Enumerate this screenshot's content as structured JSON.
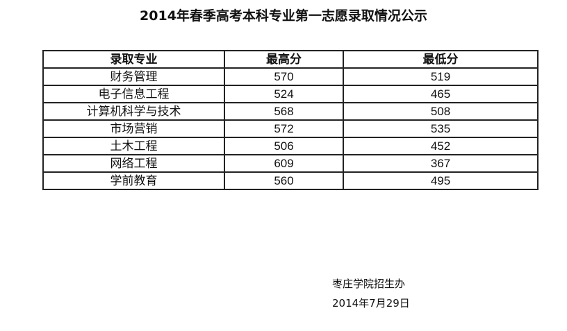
{
  "title": "2014年春季高考本科专业第一志愿录取情况公示",
  "table": {
    "headers": [
      "录取专业",
      "最高分",
      "最低分"
    ],
    "rows": [
      [
        "财务管理",
        "570",
        "519"
      ],
      [
        "电子信息工程",
        "524",
        "465"
      ],
      [
        "计算机科学与技术",
        "568",
        "508"
      ],
      [
        "市场营销",
        "572",
        "535"
      ],
      [
        "土木工程",
        "506",
        "452"
      ],
      [
        "网络工程",
        "609",
        "367"
      ],
      [
        "学前教育",
        "560",
        "495"
      ]
    ]
  },
  "footer": {
    "issuer": "枣庄学院招生办",
    "date": "2014年7月29日"
  }
}
